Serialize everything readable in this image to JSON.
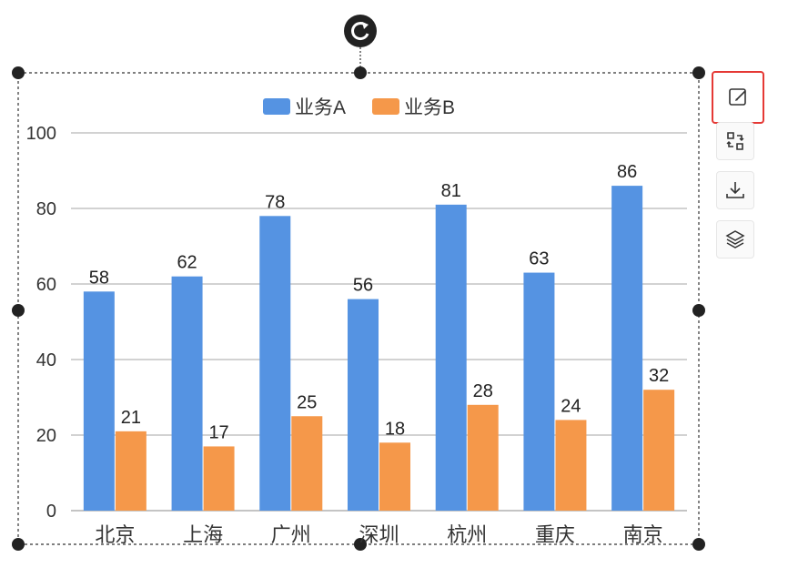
{
  "chart_data": {
    "type": "bar",
    "categories": [
      "北京",
      "上海",
      "广州",
      "深圳",
      "杭州",
      "重庆",
      "南京"
    ],
    "series": [
      {
        "name": "业务A",
        "color": "#5593e2",
        "values": [
          58,
          62,
          78,
          56,
          81,
          63,
          86
        ]
      },
      {
        "name": "业务B",
        "color": "#f5984a",
        "values": [
          21,
          17,
          25,
          18,
          28,
          24,
          32
        ]
      }
    ],
    "ylim": [
      0,
      100
    ],
    "yticks": [
      0,
      20,
      40,
      60,
      80,
      100
    ],
    "grid": true,
    "legend": "top-center",
    "data_labels": true
  },
  "toolbar": {
    "items": [
      {
        "icon": "edit-icon",
        "active": true
      },
      {
        "icon": "swap-icon",
        "active": false
      },
      {
        "icon": "download-icon",
        "active": false
      },
      {
        "icon": "layers-icon",
        "active": false
      }
    ]
  },
  "selection": {
    "rotate_icon": "rotate-icon"
  }
}
